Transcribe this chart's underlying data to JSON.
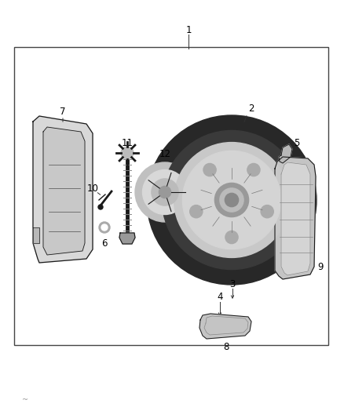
{
  "bg_color": "#ffffff",
  "border_color": "#444444",
  "border_lw": 1.0,
  "fig_width": 4.38,
  "fig_height": 5.33,
  "line_color": "#333333",
  "part_dark": "#1a1a1a",
  "part_mid": "#777777",
  "part_light": "#cccccc",
  "part_xlight": "#e8e8e8",
  "label_fontsize": 8.5,
  "footnote_color": "#999999"
}
